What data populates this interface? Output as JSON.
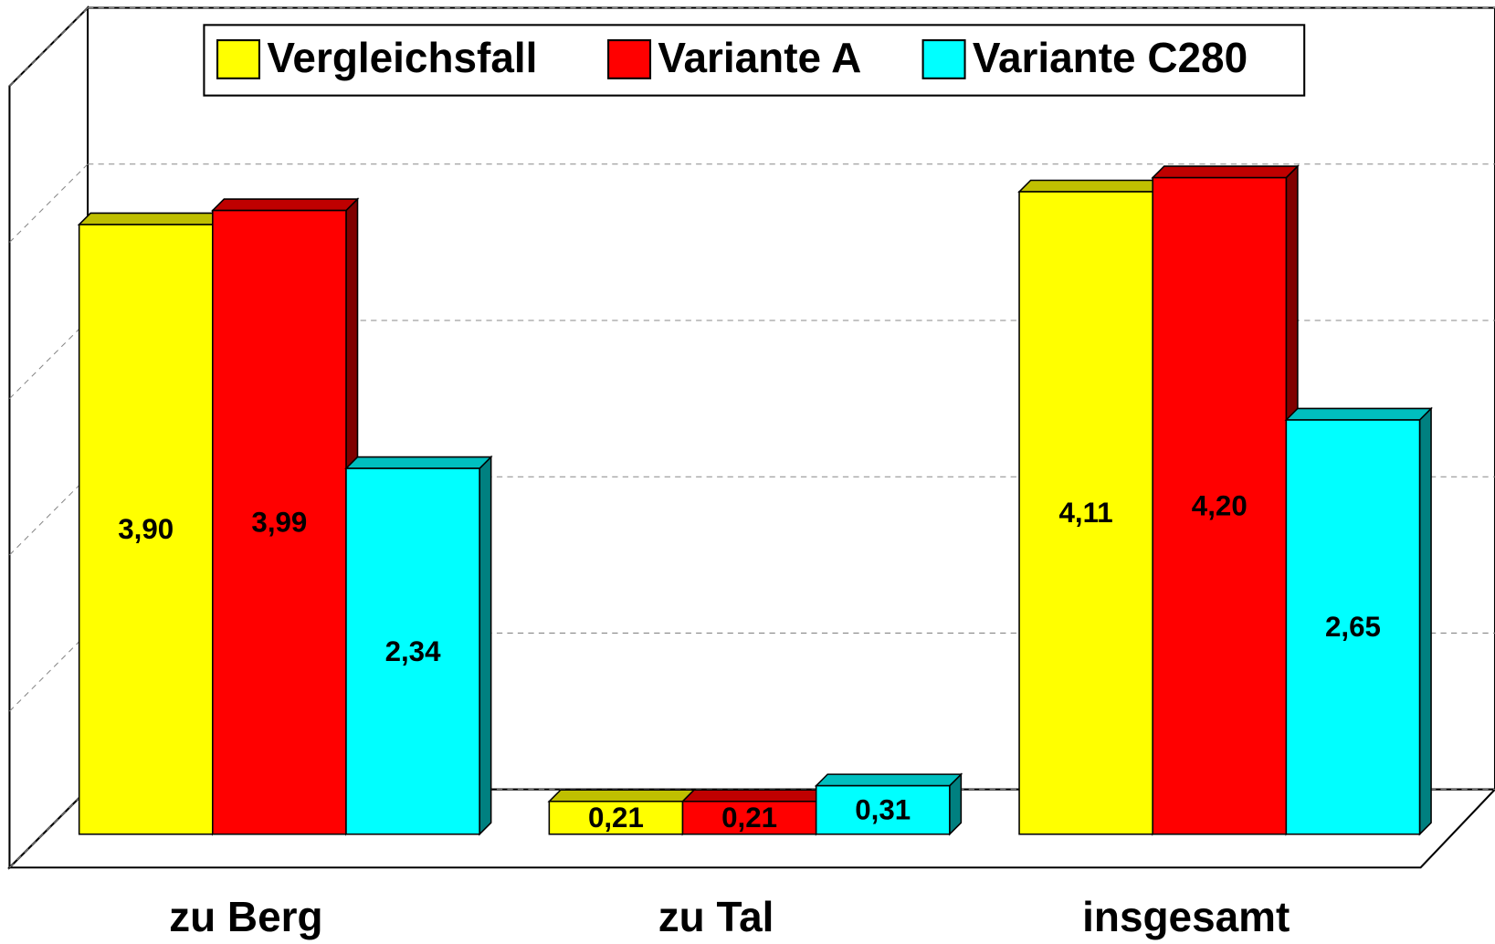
{
  "chart_data": {
    "type": "bar3d",
    "categories": [
      "zu Berg",
      "zu Tal",
      "insgesamt"
    ],
    "series": [
      {
        "name": "Vergleichsfall",
        "color": "#ffff00",
        "values": [
          3.9,
          0.21,
          4.11
        ],
        "value_labels": [
          "3,90",
          "0,21",
          "4,11"
        ]
      },
      {
        "name": "Variante A",
        "color": "#ff0000",
        "values": [
          3.99,
          0.21,
          4.2
        ],
        "value_labels": [
          "3,99",
          "0,21",
          "4,20"
        ]
      },
      {
        "name": "Variante C280",
        "color": "#00ffff",
        "values": [
          2.34,
          0.31,
          2.65
        ],
        "value_labels": [
          "2,34",
          "0,31",
          "2,65"
        ]
      }
    ],
    "ylim": [
      0,
      5
    ],
    "yticks": [
      0,
      1,
      2,
      3,
      4,
      5
    ],
    "grid": true,
    "legend": "top"
  }
}
